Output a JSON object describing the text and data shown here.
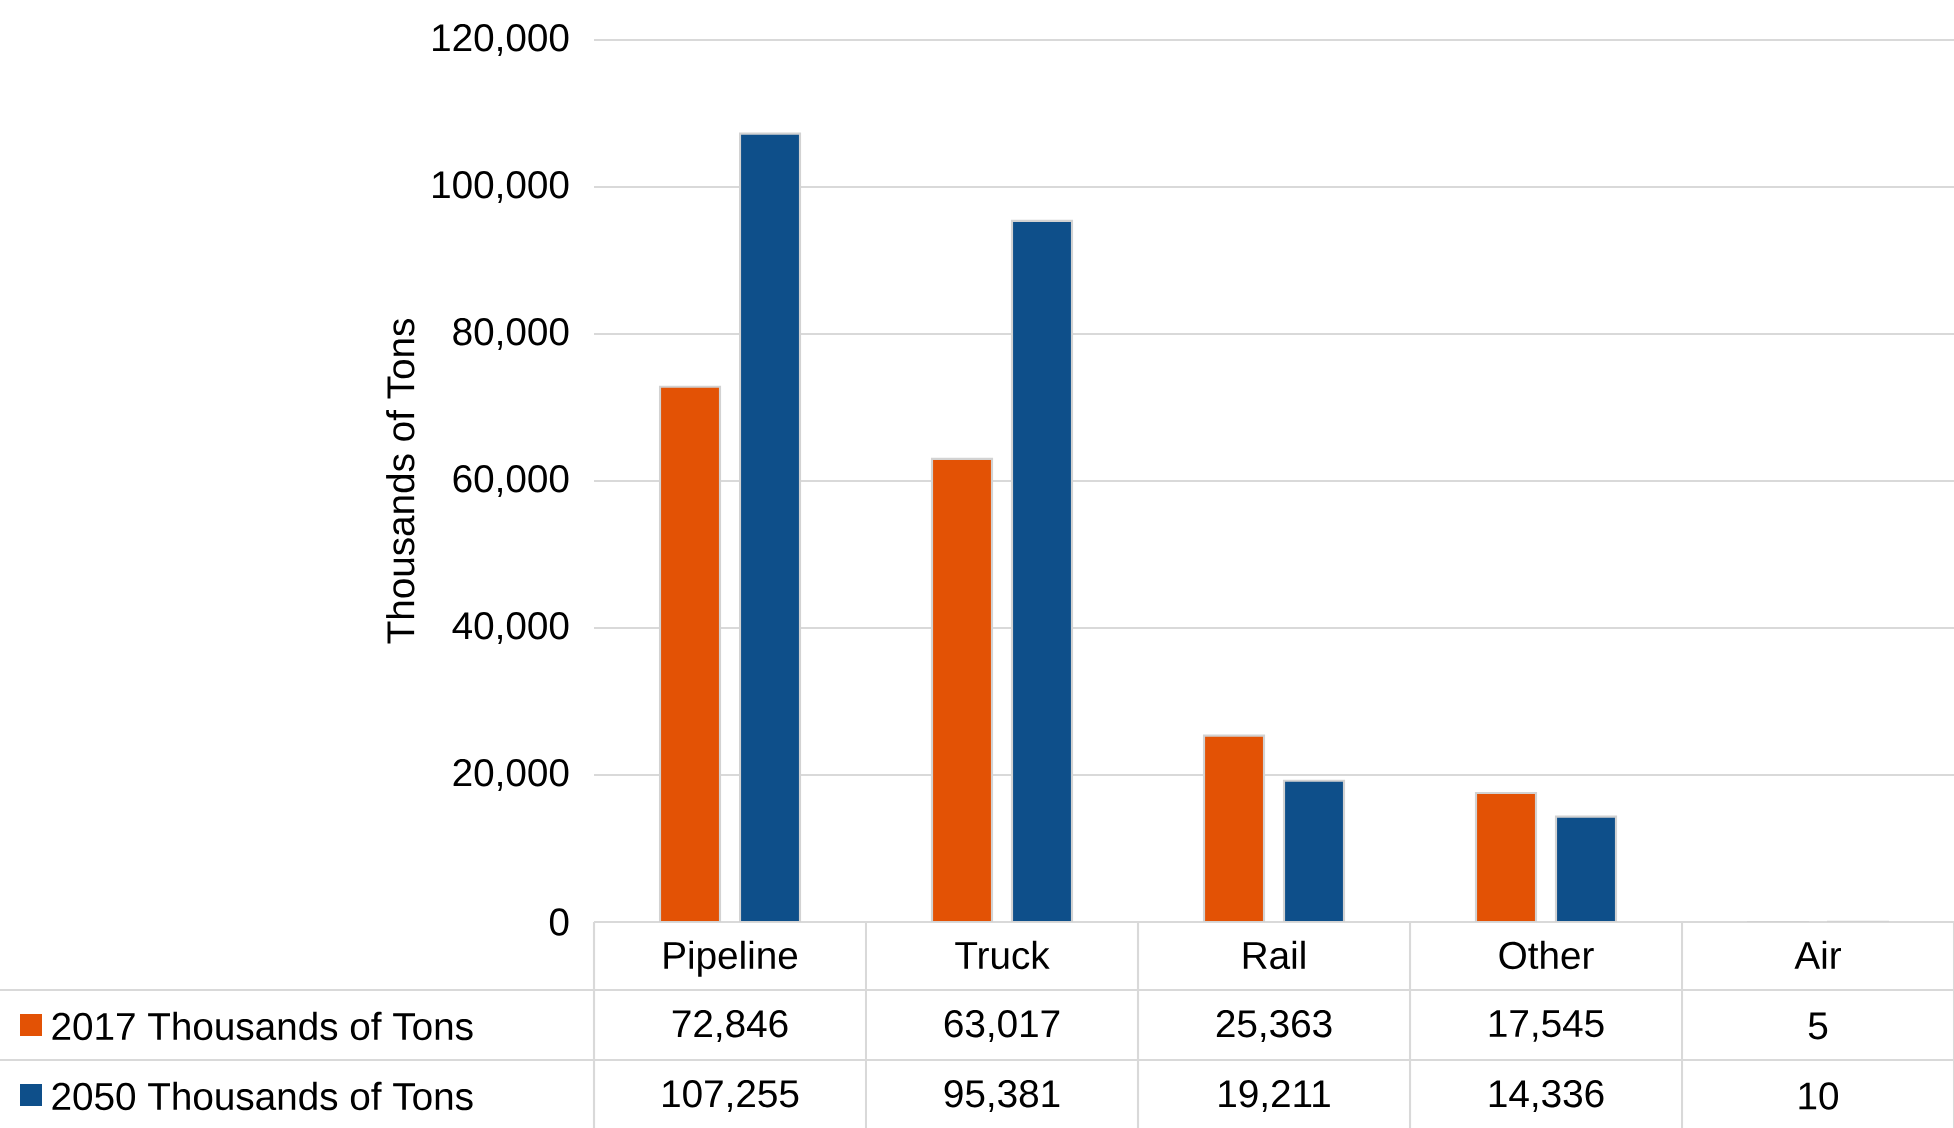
{
  "chart_data": {
    "type": "bar",
    "ylabel": "Thousands of Tons",
    "categories": [
      "Pipeline",
      "Truck",
      "Rail",
      "Other",
      "Air"
    ],
    "series": [
      {
        "name": "2017 Thousands of Tons",
        "color": "#e35205",
        "values": [
          72846,
          63017,
          25363,
          17545,
          5
        ],
        "value_labels": [
          "72,846",
          "63,017",
          "25,363",
          "17,545",
          "5"
        ]
      },
      {
        "name": "2050 Thousands of Tons",
        "color": "#0e4f8a",
        "values": [
          107255,
          95381,
          19211,
          14336,
          10
        ],
        "value_labels": [
          "107,255",
          "95,381",
          "19,211",
          "14,336",
          "10"
        ]
      }
    ],
    "ylim": [
      0,
      120000
    ],
    "yticks": [
      {
        "value": 0,
        "label": "0"
      },
      {
        "value": 20000,
        "label": "20,000"
      },
      {
        "value": 40000,
        "label": "40,000"
      },
      {
        "value": 60000,
        "label": "60,000"
      },
      {
        "value": 80000,
        "label": "80,000"
      },
      {
        "value": 100000,
        "label": "100,000"
      },
      {
        "value": 120000,
        "label": "120,000"
      }
    ],
    "grid": "y",
    "legend": "bottom"
  }
}
